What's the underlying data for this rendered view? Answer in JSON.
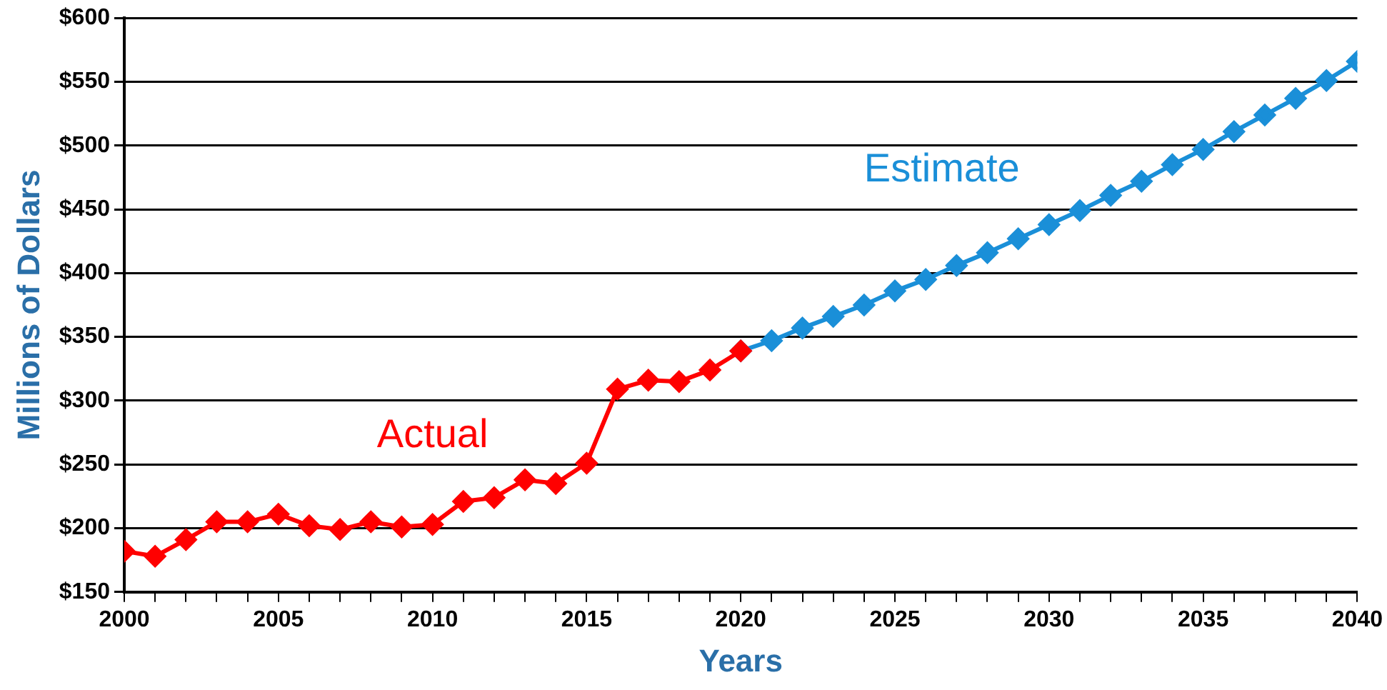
{
  "chart_data": {
    "type": "line",
    "xlabel": "Years",
    "ylabel": "Millions of Dollars",
    "x": [
      2000,
      2001,
      2002,
      2003,
      2004,
      2005,
      2006,
      2007,
      2008,
      2009,
      2010,
      2011,
      2012,
      2013,
      2014,
      2015,
      2016,
      2017,
      2018,
      2019,
      2020
    ],
    "series": [
      {
        "name": "Actual",
        "color": "#ff0000",
        "values": [
          182,
          178,
          191,
          205,
          205,
          211,
          202,
          199,
          205,
          201,
          203,
          221,
          224,
          238,
          235,
          251,
          309,
          316,
          315,
          324,
          339
        ]
      },
      {
        "name": "Estimate",
        "color": "#1a8fd8",
        "x": [
          2020,
          2021,
          2022,
          2023,
          2024,
          2025,
          2026,
          2027,
          2028,
          2029,
          2030,
          2031,
          2032,
          2033,
          2034,
          2035,
          2036,
          2037,
          2038,
          2039,
          2040
        ],
        "values": [
          339,
          347,
          357,
          366,
          375,
          386,
          395,
          406,
          416,
          427,
          438,
          449,
          461,
          472,
          485,
          497,
          511,
          524,
          537,
          551,
          566
        ]
      }
    ],
    "xlim": [
      2000,
      2040
    ],
    "xticks": [
      2000,
      {
        "value": 2001,
        "label": null
      },
      {
        "value": 2002,
        "label": null
      },
      {
        "value": 2003,
        "label": null
      },
      {
        "value": 2004,
        "label": null
      },
      2005,
      {
        "value": 2006,
        "label": null
      },
      {
        "value": 2007,
        "label": null
      },
      {
        "value": 2008,
        "label": null
      },
      {
        "value": 2009,
        "label": null
      },
      2010,
      {
        "value": 2011,
        "label": null
      },
      {
        "value": 2012,
        "label": null
      },
      {
        "value": 2013,
        "label": null
      },
      {
        "value": 2014,
        "label": null
      },
      2015,
      {
        "value": 2016,
        "label": null
      },
      {
        "value": 2017,
        "label": null
      },
      {
        "value": 2018,
        "label": null
      },
      {
        "value": 2019,
        "label": null
      },
      2020,
      {
        "value": 2021,
        "label": null
      },
      {
        "value": 2022,
        "label": null
      },
      {
        "value": 2023,
        "label": null
      },
      {
        "value": 2024,
        "label": null
      },
      2025,
      {
        "value": 2026,
        "label": null
      },
      {
        "value": 2027,
        "label": null
      },
      {
        "value": 2028,
        "label": null
      },
      {
        "value": 2029,
        "label": null
      },
      2030,
      {
        "value": 2031,
        "label": null
      },
      {
        "value": 2032,
        "label": null
      },
      {
        "value": 2033,
        "label": null
      },
      {
        "value": 2034,
        "label": null
      },
      2035,
      {
        "value": 2036,
        "label": null
      },
      {
        "value": 2037,
        "label": null
      },
      {
        "value": 2038,
        "label": null
      },
      {
        "value": 2039,
        "label": null
      },
      2040
    ],
    "ylim": [
      150,
      600
    ],
    "yticks": [
      {
        "value": 150,
        "label": "$150"
      },
      {
        "value": 200,
        "label": "$200"
      },
      {
        "value": 250,
        "label": "$250"
      },
      {
        "value": 300,
        "label": "$300"
      },
      {
        "value": 350,
        "label": "$350"
      },
      {
        "value": 400,
        "label": "$400"
      },
      {
        "value": 450,
        "label": "$450"
      },
      {
        "value": 500,
        "label": "$500"
      },
      {
        "value": 550,
        "label": "$550"
      },
      {
        "value": 600,
        "label": "$600"
      }
    ],
    "grid": "y",
    "legend": false,
    "marker": "diamond",
    "line_style": "solid"
  }
}
